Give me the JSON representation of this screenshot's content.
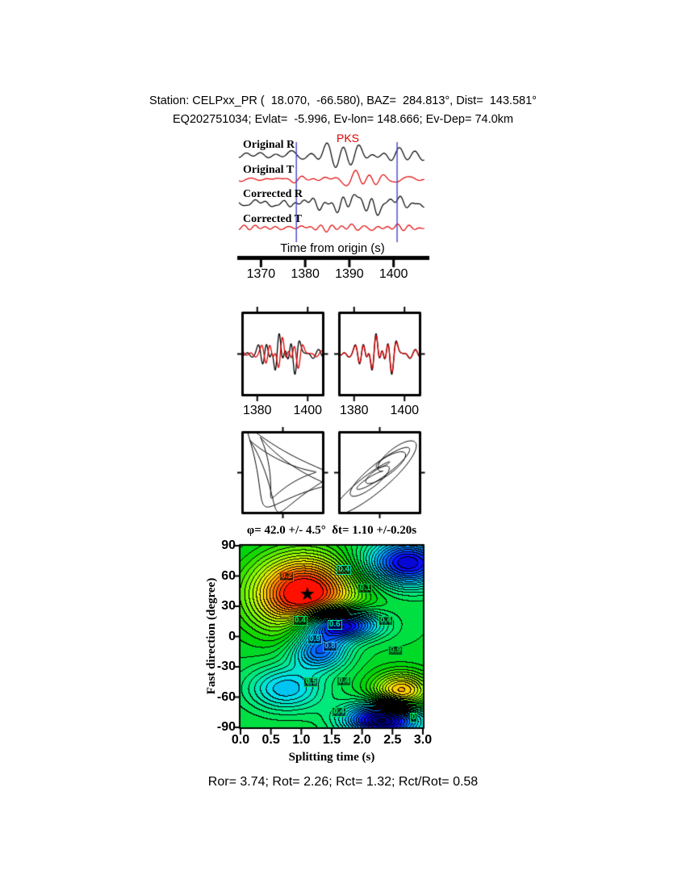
{
  "header": {
    "line1": "Station: CELPxx_PR (  18.070,  -66.580), BAZ=  284.813°, Dist=  143.581°",
    "line2": "EQ202751034; Evlat=  -5.996, Ev-lon= 148.666; Ev-Dep= 74.0km"
  },
  "footer": "Ror= 3.74; Rot= 2.26; Rct= 1.32; Rct/Rot= 0.58",
  "chart_data": [
    {
      "type": "line",
      "panel": "waveform-traces",
      "series": [
        {
          "name": "Original R",
          "color": "#000000"
        },
        {
          "name": "Original T",
          "color": "#e00000"
        },
        {
          "name": "Corrected R",
          "color": "#000000"
        },
        {
          "name": "Corrected T",
          "color": "#e00000"
        }
      ],
      "phase": "PKS",
      "xlabel": "Time from origin (s)",
      "xticks": [
        1370,
        1380,
        1390,
        1400
      ],
      "x_range": [
        1365,
        1407
      ],
      "window": [
        1378,
        1400.8
      ],
      "window_color": "#4444cc"
    },
    {
      "type": "line",
      "panel": "window-comparison",
      "x_range": [
        1374,
        1406
      ],
      "panels": [
        {
          "name": "original-pair",
          "xticks": [
            1380,
            1400
          ]
        },
        {
          "name": "corrected-pair",
          "xticks": [
            1380,
            1400
          ]
        }
      ],
      "colors": [
        "#000000",
        "#e00000"
      ]
    },
    {
      "type": "scatter",
      "panel": "particle-motion",
      "panels": [
        {
          "name": "original"
        },
        {
          "name": "corrected"
        }
      ]
    },
    {
      "type": "heatmap",
      "panel": "splitting-error-surface",
      "title": "φ= 42.0 +/- 4.5°  δt= 1.10 +/-0.20s",
      "xlabel": "Splitting time (s)",
      "ylabel": "Fast direction (degree)",
      "x_range": [
        0,
        3
      ],
      "y_range": [
        -90,
        90
      ],
      "xticks": [
        "0.0",
        "0.5",
        "1.0",
        "1.5",
        "2.0",
        "2.5",
        "3.0"
      ],
      "yticks": [
        90,
        60,
        30,
        0,
        -30,
        -60,
        -90
      ],
      "best_dt": 1.1,
      "best_dt_err": 0.2,
      "best_phi": 42.0,
      "best_phi_err": 4.5,
      "levels": 36,
      "surface": {
        "base": 0.47,
        "bumps": [
          [
            -0.52,
            1.05,
            42,
            0.6,
            27
          ],
          [
            0.42,
            2.75,
            73,
            0.5,
            17
          ],
          [
            0.55,
            1.62,
            12,
            0.45,
            11
          ],
          [
            0.34,
            1.3,
            -14,
            0.33,
            13
          ],
          [
            -0.33,
            2.65,
            -55,
            0.33,
            13
          ],
          [
            0.5,
            2.35,
            -83,
            0.45,
            12
          ],
          [
            0.22,
            0.75,
            -52,
            0.45,
            16
          ]
        ]
      },
      "colormap": [
        [
          0.0,
          [
            255,
            0,
            0
          ]
        ],
        [
          0.1,
          [
            255,
            115,
            0
          ]
        ],
        [
          0.2,
          [
            255,
            225,
            0
          ]
        ],
        [
          0.3,
          [
            150,
            255,
            0
          ]
        ],
        [
          0.42,
          [
            0,
            210,
            0
          ]
        ],
        [
          0.55,
          [
            0,
            235,
            130
          ]
        ],
        [
          0.65,
          [
            0,
            225,
            235
          ]
        ],
        [
          0.75,
          [
            0,
            130,
            255
          ]
        ],
        [
          0.85,
          [
            10,
            10,
            255
          ]
        ],
        [
          0.93,
          [
            0,
            0,
            120
          ]
        ],
        [
          1.0,
          [
            0,
            0,
            0
          ]
        ]
      ],
      "labels": [
        {
          "text": "0.2",
          "dt": 0.76,
          "phi": 60,
          "color": "#ff5500"
        },
        {
          "text": "0.4",
          "dt": 1.7,
          "phi": 66,
          "color": "#00ddaa"
        },
        {
          "text": "0.1",
          "dt": 2.05,
          "phi": 48,
          "color": "#00cc44"
        },
        {
          "text": "0.4",
          "dt": 0.98,
          "phi": 16,
          "color": "#00dd55"
        },
        {
          "text": "0.6",
          "dt": 1.55,
          "phi": 12,
          "color": "#00ddaa"
        },
        {
          "text": "0.4",
          "dt": 2.39,
          "phi": 16,
          "color": "#00dd55"
        },
        {
          "text": "0.9",
          "dt": 1.22,
          "phi": -3,
          "color": "#00ccee"
        },
        {
          "text": "0.8",
          "dt": 1.47,
          "phi": -10,
          "color": "#33aaff"
        },
        {
          "text": "0.9",
          "dt": 2.55,
          "phi": -14,
          "color": "#00cc44"
        },
        {
          "text": "0.5",
          "dt": 1.16,
          "phi": -45,
          "color": "#00dd55"
        },
        {
          "text": "0.4",
          "dt": 1.7,
          "phi": -44,
          "color": "#00dd55"
        },
        {
          "text": "0.4",
          "dt": 1.62,
          "phi": -75,
          "color": "#00dd55"
        },
        {
          "text": "0",
          "dt": 2.85,
          "phi": -80,
          "color": "#00ee66"
        }
      ]
    }
  ]
}
